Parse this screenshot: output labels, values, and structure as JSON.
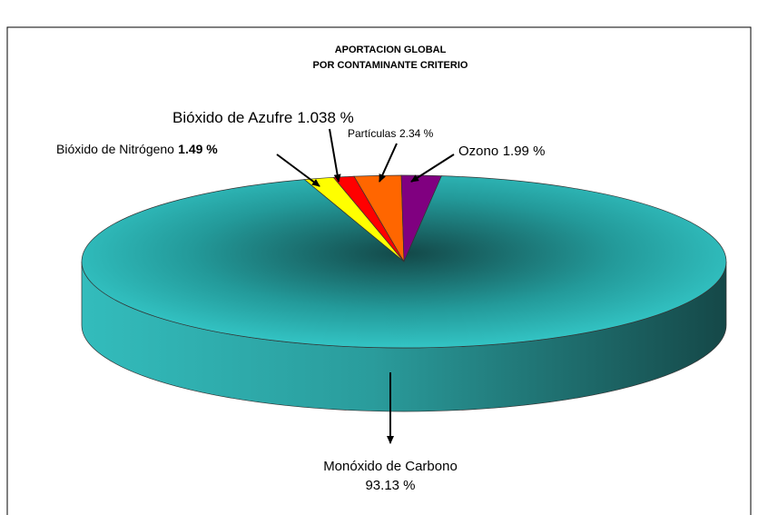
{
  "chart_data": {
    "type": "pie",
    "title": "APORTACION GLOBAL",
    "subtitle": "POR CONTAMINANTE CRITERIO",
    "categories": [
      "Bióxido de Nitrógeno",
      "Bióxido de Azufre",
      "Partículas",
      "Ozono",
      "Monóxido de Carbono"
    ],
    "values": [
      1.49,
      1.038,
      2.34,
      1.99,
      93.13
    ],
    "value_labels": [
      "1.49 %",
      "1.038 %",
      "2.34 %",
      "1.99 %",
      "93.13 %"
    ],
    "colors": [
      "#ffff00",
      "#ff0000",
      "#ff6600",
      "#800080",
      "#2fbfbf"
    ]
  }
}
